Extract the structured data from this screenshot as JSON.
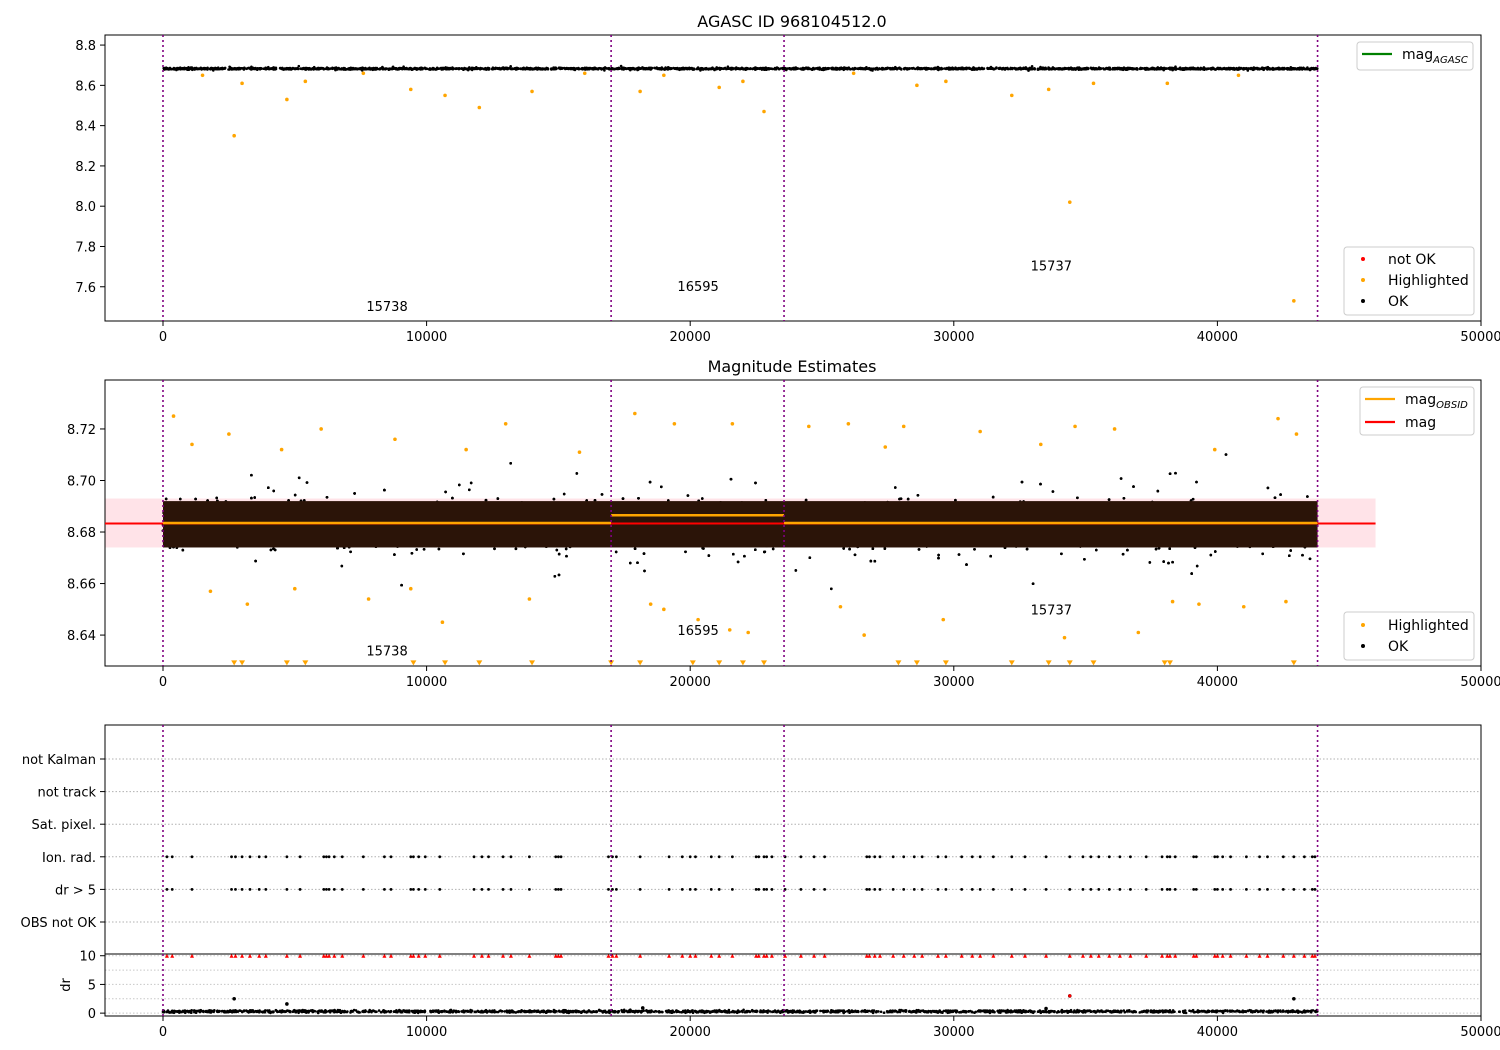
{
  "figure_title": "AGASC ID 968104512.0",
  "colors": {
    "ok": "#000000",
    "highlighted": "#ffa500",
    "not_ok": "#ff0000",
    "mag_agasc": "#008000",
    "mag_obsid": "#ffa500",
    "mag": "#ff0000",
    "mag_band": "#ffc0cb",
    "obsid_line": "#800080"
  },
  "chart_data": [
    {
      "type": "scatter",
      "title": "AGASC ID 968104512.0",
      "xlim": [
        -2200,
        50000
      ],
      "ylim": [
        7.43,
        8.85
      ],
      "xticks": [
        0,
        10000,
        20000,
        30000,
        40000,
        50000
      ],
      "xtick_labels": [
        "0",
        "10000",
        "20000",
        "30000",
        "40000",
        "50000"
      ],
      "yticks": [
        7.6,
        7.8,
        8.0,
        8.2,
        8.4,
        8.6,
        8.8
      ],
      "ytick_labels": [
        "7.6",
        "7.8",
        "8.0",
        "8.2",
        "8.4",
        "8.6",
        "8.8"
      ],
      "obsid_boundaries": [
        0,
        17000,
        23560,
        43800
      ],
      "obsid_labels": [
        {
          "label": "15738",
          "x": 8500,
          "y": 7.48
        },
        {
          "label": "16595",
          "x": 20300,
          "y": 7.58
        },
        {
          "label": "15737",
          "x": 33700,
          "y": 7.68
        }
      ],
      "legend_top": {
        "position": "top-right",
        "entries": [
          {
            "name": "mag",
            "sub": "AGASC",
            "kind": "line",
            "color": "#008000"
          }
        ]
      },
      "legend_bottom": {
        "position": "lower-right",
        "entries": [
          {
            "name": "not OK",
            "kind": "point",
            "color": "#ff0000"
          },
          {
            "name": "Highlighted",
            "kind": "point",
            "color": "#ffa500"
          },
          {
            "name": "OK",
            "kind": "point",
            "color": "#000000"
          }
        ]
      },
      "series": [
        {
          "name": "OK",
          "band": {
            "x_range": [
              0,
              43800
            ],
            "center": 8.683,
            "half_width": 0.008
          }
        },
        {
          "name": "Highlighted",
          "points": [
            [
              2700,
              8.35
            ],
            [
              4700,
              8.53
            ],
            [
              3000,
              8.61
            ],
            [
              5400,
              8.62
            ],
            [
              9400,
              8.58
            ],
            [
              10700,
              8.55
            ],
            [
              12000,
              8.49
            ],
            [
              14000,
              8.57
            ],
            [
              18100,
              8.57
            ],
            [
              21100,
              8.59
            ],
            [
              22000,
              8.62
            ],
            [
              22800,
              8.47
            ],
            [
              19000,
              8.65
            ],
            [
              28600,
              8.6
            ],
            [
              29700,
              8.62
            ],
            [
              32200,
              8.55
            ],
            [
              33600,
              8.58
            ],
            [
              34400,
              8.02
            ],
            [
              35300,
              8.61
            ],
            [
              38100,
              8.61
            ],
            [
              42900,
              7.53
            ],
            [
              1500,
              8.65
            ],
            [
              7600,
              8.66
            ],
            [
              16000,
              8.66
            ],
            [
              26200,
              8.66
            ],
            [
              40800,
              8.65
            ]
          ]
        }
      ]
    },
    {
      "type": "scatter",
      "title": "Magnitude Estimates",
      "xlim": [
        -2200,
        50000
      ],
      "ylim": [
        8.628,
        8.739
      ],
      "xticks": [
        0,
        10000,
        20000,
        30000,
        40000,
        50000
      ],
      "xtick_labels": [
        "0",
        "10000",
        "20000",
        "30000",
        "40000",
        "50000"
      ],
      "yticks": [
        8.64,
        8.66,
        8.68,
        8.7,
        8.72
      ],
      "ytick_labels": [
        "8.64",
        "8.66",
        "8.68",
        "8.70",
        "8.72"
      ],
      "obsid_boundaries": [
        0,
        17000,
        23560,
        43800
      ],
      "obsid_labels": [
        {
          "label": "15738",
          "x": 8500,
          "y": 8.632
        },
        {
          "label": "16595",
          "x": 20300,
          "y": 8.64
        },
        {
          "label": "15737",
          "x": 33700,
          "y": 8.648
        }
      ],
      "mag": 8.6833,
      "mag_band": [
        8.674,
        8.693
      ],
      "mag_band_x": [
        -2200,
        46000
      ],
      "mag_obsid": [
        {
          "x": [
            0,
            17000
          ],
          "value": 8.6835
        },
        {
          "x": [
            17000,
            23560
          ],
          "value": 8.6865
        },
        {
          "x": [
            23560,
            43800
          ],
          "value": 8.6835
        }
      ],
      "legend_top": {
        "position": "top-right",
        "entries": [
          {
            "name": "mag",
            "sub": "OBSID",
            "kind": "line",
            "color": "#ffa500"
          },
          {
            "name": "mag",
            "kind": "line",
            "color": "#ff0000"
          }
        ]
      },
      "legend_bottom": {
        "position": "lower-right",
        "entries": [
          {
            "name": "Highlighted",
            "kind": "point",
            "color": "#ffa500"
          },
          {
            "name": "OK",
            "kind": "point",
            "color": "#000000"
          }
        ]
      },
      "series": [
        {
          "name": "OK",
          "band": {
            "x_range": [
              0,
              43800
            ],
            "center": 8.683,
            "half_width": 0.017
          }
        },
        {
          "name": "Highlighted",
          "points": [
            [
              400,
              8.725
            ],
            [
              2500,
              8.718
            ],
            [
              6000,
              8.72
            ],
            [
              8800,
              8.716
            ],
            [
              13000,
              8.722
            ],
            [
              17900,
              8.726
            ],
            [
              19400,
              8.722
            ],
            [
              21600,
              8.722
            ],
            [
              24500,
              8.721
            ],
            [
              26000,
              8.722
            ],
            [
              28100,
              8.721
            ],
            [
              31000,
              8.719
            ],
            [
              34600,
              8.721
            ],
            [
              36100,
              8.72
            ],
            [
              42300,
              8.724
            ],
            [
              43000,
              8.718
            ],
            [
              1800,
              8.657
            ],
            [
              3200,
              8.652
            ],
            [
              5000,
              8.658
            ],
            [
              7800,
              8.654
            ],
            [
              9400,
              8.658
            ],
            [
              10600,
              8.645
            ],
            [
              13900,
              8.654
            ],
            [
              18500,
              8.652
            ],
            [
              19000,
              8.65
            ],
            [
              20300,
              8.646
            ],
            [
              21500,
              8.642
            ],
            [
              22200,
              8.641
            ],
            [
              25700,
              8.651
            ],
            [
              26600,
              8.64
            ],
            [
              29600,
              8.646
            ],
            [
              34200,
              8.639
            ],
            [
              37000,
              8.641
            ],
            [
              38300,
              8.653
            ],
            [
              39300,
              8.652
            ],
            [
              41000,
              8.651
            ],
            [
              42600,
              8.653
            ],
            [
              1100,
              8.714
            ],
            [
              4500,
              8.712
            ],
            [
              11500,
              8.712
            ],
            [
              15800,
              8.711
            ],
            [
              27400,
              8.713
            ],
            [
              33300,
              8.714
            ],
            [
              39900,
              8.712
            ]
          ]
        },
        {
          "name": "Highlighted (below range)",
          "marker": "triangle-down",
          "points": [
            [
              2700,
              8.629
            ],
            [
              3000,
              8.629
            ],
            [
              4700,
              8.629
            ],
            [
              5400,
              8.629
            ],
            [
              9500,
              8.629
            ],
            [
              10700,
              8.629
            ],
            [
              12000,
              8.629
            ],
            [
              14000,
              8.629
            ],
            [
              17000,
              8.629
            ],
            [
              18100,
              8.629
            ],
            [
              20100,
              8.629
            ],
            [
              21100,
              8.629
            ],
            [
              22000,
              8.629
            ],
            [
              22800,
              8.629
            ],
            [
              27900,
              8.629
            ],
            [
              28600,
              8.629
            ],
            [
              29700,
              8.629
            ],
            [
              32200,
              8.629
            ],
            [
              33600,
              8.629
            ],
            [
              34400,
              8.629
            ],
            [
              35300,
              8.629
            ],
            [
              38000,
              8.629
            ],
            [
              38200,
              8.629
            ],
            [
              42900,
              8.629
            ]
          ]
        }
      ]
    },
    {
      "type": "scatter",
      "title": "",
      "xlim": [
        -2200,
        50000
      ],
      "categories": [
        "not Kalman",
        "not track",
        "Sat. pixel.",
        "Ion. rad.",
        "dr > 5",
        "OBS not OK"
      ],
      "obsid_boundaries": [
        0,
        17000,
        23560,
        43800
      ],
      "flag_events_x": [
        150,
        350,
        1100,
        2600,
        2750,
        3000,
        3300,
        3650,
        3900,
        4700,
        5200,
        6100,
        6200,
        6300,
        6500,
        6800,
        7600,
        8400,
        8650,
        9400,
        9500,
        9700,
        9950,
        10500,
        11800,
        12100,
        12350,
        12900,
        13200,
        13900,
        14900,
        15000,
        15100,
        16900,
        17050,
        17200,
        18100,
        19200,
        19700,
        20000,
        20200,
        20800,
        21100,
        21600,
        22500,
        22600,
        22800,
        22900,
        23100,
        23600,
        24200,
        24700,
        25100,
        26700,
        26800,
        27000,
        27200,
        27700,
        28100,
        28500,
        28800,
        29400,
        29700,
        30300,
        30700,
        31000,
        31500,
        32200,
        32700,
        33500,
        34400,
        34900,
        35200,
        35500,
        35900,
        36300,
        36700,
        37300,
        37900,
        38100,
        38200,
        38400,
        39100,
        39200,
        39900,
        40000,
        40200,
        40500,
        41100,
        41600,
        41900,
        42500,
        42900,
        43300,
        43600,
        43700
      ]
    },
    {
      "type": "scatter",
      "title": "",
      "ylabel": "dr",
      "xlim": [
        -2200,
        50000
      ],
      "ylim": [
        -0.5,
        10.3
      ],
      "xticks": [
        0,
        10000,
        20000,
        30000,
        40000,
        50000
      ],
      "xtick_labels": [
        "0",
        "10000",
        "20000",
        "30000",
        "40000",
        "50000"
      ],
      "yticks": [
        0,
        5,
        10
      ],
      "ytick_labels": [
        "0",
        "5",
        "10"
      ],
      "obsid_boundaries": [
        0,
        17000,
        23560,
        43800
      ],
      "series": [
        {
          "name": "OK",
          "band": {
            "x_range": [
              0,
              43800
            ],
            "center": 0.3,
            "half_width": 0.35
          }
        },
        {
          "name": "not OK",
          "marker": "triangle-up",
          "clipped_at": 10
        },
        {
          "name": "outliers",
          "points": [
            [
              2700,
              2.5
            ],
            [
              4700,
              1.6
            ],
            [
              34400,
              3.0
            ],
            [
              42900,
              2.5
            ],
            [
              18200,
              0.9
            ],
            [
              33500,
              0.8
            ]
          ]
        }
      ]
    }
  ]
}
